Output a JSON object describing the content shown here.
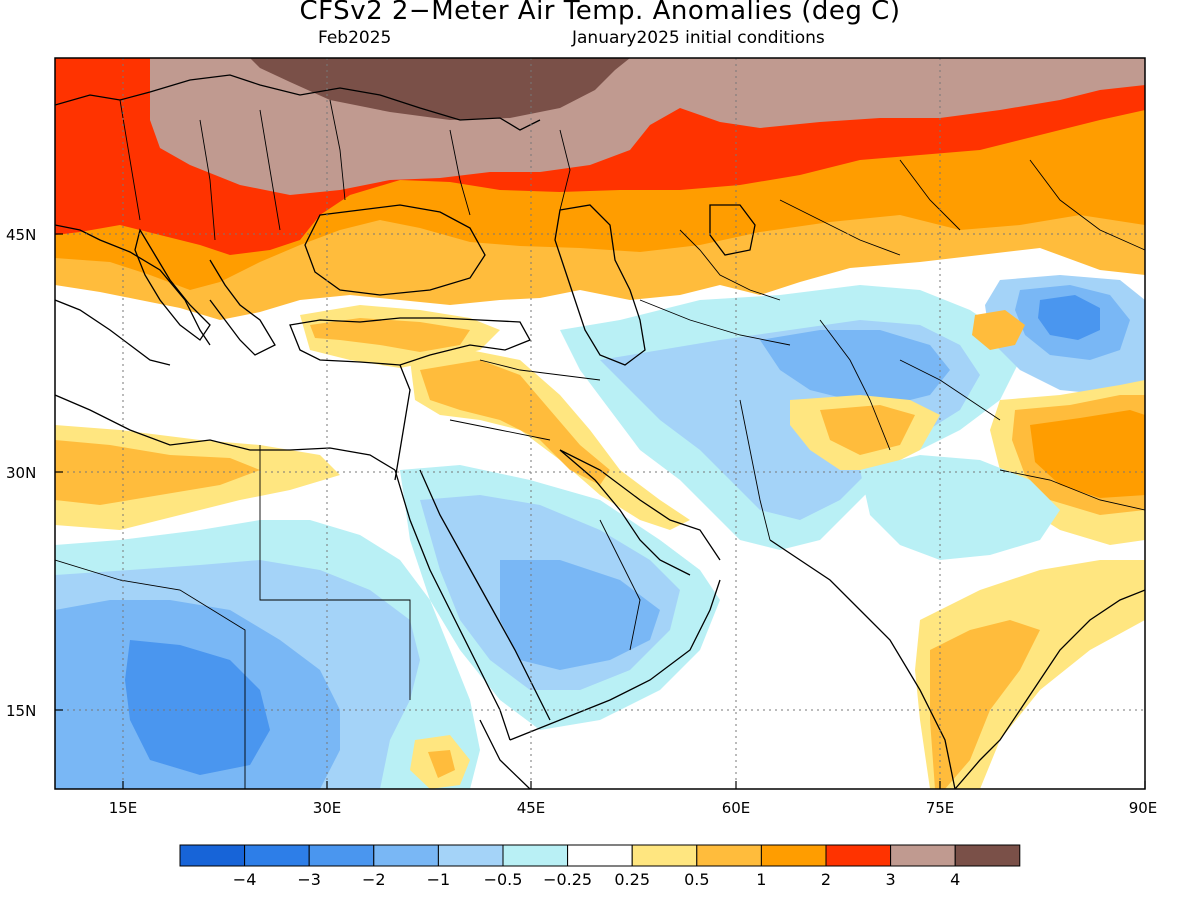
{
  "title": "CFSv2 2−Meter Air Temp. Anomalies (deg C)",
  "valid_month": "Feb2025",
  "initial_conditions": "January2025 initial conditions",
  "lon_labels": [
    "15E",
    "30E",
    "45E",
    "60E",
    "75E",
    "90E"
  ],
  "lat_labels": [
    "45N",
    "30N",
    "15N"
  ],
  "colorbar": {
    "colors": [
      "#1764d8",
      "#2d7ee8",
      "#4a96ef",
      "#79b7f5",
      "#a4d3f8",
      "#b9f0f5",
      "#ffffff",
      "#ffe680",
      "#ffbc3c",
      "#ff9d00",
      "#ff3300",
      "#c09a90",
      "#7a5048"
    ],
    "labels": [
      "−4",
      "−3",
      "−2",
      "−1",
      "−0.5",
      "−0.25",
      "0.25",
      "0.5",
      "1",
      "2",
      "3",
      "4"
    ]
  },
  "map_data": {
    "lon_range": [
      10,
      90
    ],
    "lat_range": [
      10,
      57
    ],
    "region": "Middle East / South Asia",
    "features": "coastlines, country borders, dotted graticule"
  }
}
